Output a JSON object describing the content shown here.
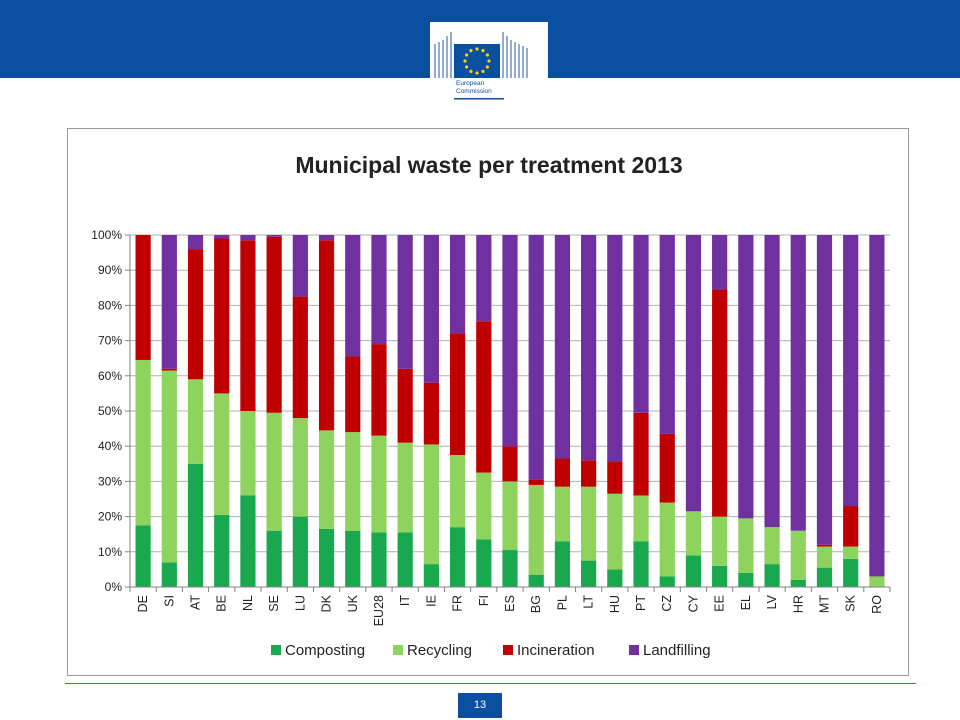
{
  "header": {
    "logo_line1": "European",
    "logo_line2": "Commission",
    "brand_color": "#0a4fa0"
  },
  "footer": {
    "page_number": "13"
  },
  "chart_data": {
    "type": "bar",
    "stacked": true,
    "title": "Municipal waste per treatment 2013",
    "xlabel": "",
    "ylabel": "",
    "ylim": [
      0,
      100
    ],
    "y_ticks": [
      "0%",
      "10%",
      "20%",
      "30%",
      "40%",
      "50%",
      "60%",
      "70%",
      "80%",
      "90%",
      "100%"
    ],
    "grid": true,
    "legend_position": "bottom",
    "categories": [
      "DE",
      "SI",
      "AT",
      "BE",
      "NL",
      "SE",
      "LU",
      "DK",
      "UK",
      "EU28",
      "IT",
      "IE",
      "FR",
      "FI",
      "ES",
      "BG",
      "PL",
      "LT",
      "HU",
      "PT",
      "CZ",
      "CY",
      "EE",
      "EL",
      "LV",
      "HR",
      "MT",
      "SK",
      "RO"
    ],
    "series": [
      {
        "name": "Composting",
        "color": "#1aa84f",
        "values": [
          17.5,
          7,
          35,
          20.5,
          26,
          16,
          20,
          16.5,
          16,
          15.5,
          15.5,
          6.5,
          17,
          13.5,
          10.5,
          3.5,
          13,
          7.5,
          5,
          13,
          3,
          9,
          6,
          4,
          6.5,
          2,
          5.5,
          8,
          0
        ]
      },
      {
        "name": "Recycling",
        "color": "#8fd35f",
        "values": [
          47,
          54.5,
          24,
          34.5,
          24,
          33.5,
          28,
          28,
          28,
          27.5,
          25.5,
          34,
          20.5,
          19,
          19.5,
          25.5,
          15.5,
          21,
          21.5,
          13,
          21,
          12.5,
          14,
          15.5,
          10.5,
          14,
          6,
          3.5,
          3
        ]
      },
      {
        "name": "Incineration",
        "color": "#c00000",
        "values": [
          35.5,
          0.5,
          37,
          44,
          48.5,
          50,
          34.5,
          54,
          21.5,
          26,
          21,
          17.5,
          34.5,
          43,
          10,
          1.5,
          8,
          7.5,
          9,
          23.5,
          19.5,
          0,
          64.5,
          0,
          0,
          0,
          0.5,
          11.5,
          0
        ]
      },
      {
        "name": "Landfilling",
        "color": "#7030a0",
        "values": [
          0,
          38,
          4,
          1,
          1.5,
          0.5,
          17.5,
          1.5,
          34.5,
          31,
          38,
          42,
          28,
          24.5,
          60,
          69.5,
          63.5,
          64,
          64.5,
          50.5,
          56.5,
          78.5,
          15.5,
          80.5,
          83,
          84,
          88,
          77,
          97
        ]
      }
    ]
  }
}
